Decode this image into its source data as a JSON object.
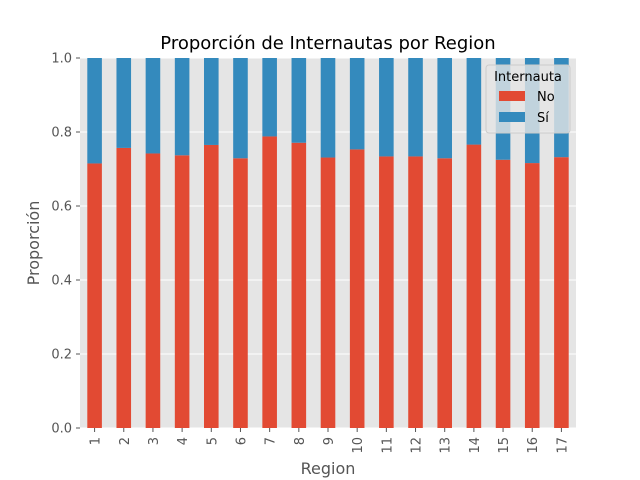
{
  "chart_data": {
    "type": "bar",
    "stacked": true,
    "title": "Proporción de Internautas por Region",
    "xlabel": "Region",
    "ylabel": "Proporción",
    "ylim": [
      0,
      1.0
    ],
    "yticks": [
      "0.0",
      "0.2",
      "0.4",
      "0.6",
      "0.8",
      "1.0"
    ],
    "grid": true,
    "legend_position": "top-right",
    "legend_title": "Internauta",
    "categories": [
      "1",
      "2",
      "3",
      "4",
      "5",
      "6",
      "7",
      "8",
      "9",
      "10",
      "11",
      "12",
      "13",
      "14",
      "15",
      "16",
      "17"
    ],
    "series": [
      {
        "name": "No",
        "color": "#E24A33",
        "values": [
          0.715,
          0.757,
          0.742,
          0.737,
          0.765,
          0.729,
          0.788,
          0.771,
          0.731,
          0.753,
          0.734,
          0.734,
          0.729,
          0.766,
          0.725,
          0.716,
          0.732
        ]
      },
      {
        "name": "Sí",
        "color": "#348ABD",
        "values": [
          0.285,
          0.243,
          0.258,
          0.263,
          0.235,
          0.271,
          0.212,
          0.229,
          0.269,
          0.247,
          0.266,
          0.266,
          0.271,
          0.234,
          0.275,
          0.284,
          0.268
        ]
      }
    ]
  }
}
